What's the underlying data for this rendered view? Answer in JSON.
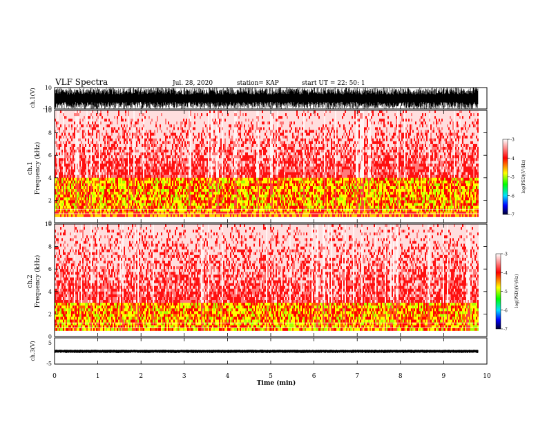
{
  "header": {
    "title": "VLF Spectra",
    "date": "Jul. 28, 2020",
    "station": "station= KAP",
    "start_ut": "start UT =  22: 50: 1"
  },
  "chart_data": [
    {
      "type": "line",
      "panel": "ch1-waveform",
      "ylabel": "ch.1(V)",
      "ylim": [
        -10,
        10
      ],
      "yticks": [
        "10",
        "-10"
      ],
      "xlim": [
        0,
        10
      ],
      "description_values": {
        "envelope_max": 10,
        "envelope_min": -10
      }
    },
    {
      "type": "heatmap",
      "panel": "ch1-spectrogram",
      "ylabel": "ch.1\nFrequency (kHz)",
      "ylabel_line1": "ch.1",
      "ylabel_line2": "Frequency (kHz)",
      "ylim": [
        0,
        10
      ],
      "yticks": [
        "0",
        "2",
        "4",
        "6",
        "8",
        "10"
      ],
      "xlim": [
        0,
        9.8
      ],
      "colorbar": {
        "label": "log(PSD)(V²/Hz)",
        "range": [
          -7,
          -3
        ],
        "ticks": [
          "-3",
          "-4",
          "-5",
          "-6",
          "-7"
        ],
        "colormap": [
          "#ffffff",
          "#ff0000",
          "#ffff00",
          "#00ff00",
          "#00ffff",
          "#0000ff",
          "#000000"
        ]
      },
      "intense_band_khz": [
        1,
        4
      ]
    },
    {
      "type": "heatmap",
      "panel": "ch2-spectrogram",
      "ylabel_line1": "ch.2",
      "ylabel_line2": "Frequency (kHz)",
      "ylim": [
        0,
        10
      ],
      "yticks": [
        "0",
        "2",
        "4",
        "6",
        "8",
        "10"
      ],
      "xlim": [
        0,
        9.8
      ],
      "colorbar": {
        "label": "log(PSD)(V²/Hz)",
        "range": [
          -7,
          -3
        ],
        "ticks": [
          "-3",
          "-4",
          "-5",
          "-6",
          "-7"
        ]
      },
      "intense_band_khz": [
        0.5,
        3
      ]
    },
    {
      "type": "line",
      "panel": "ch3-waveform",
      "ylabel": "ch.3(V)",
      "ylim": [
        -5,
        5
      ],
      "yticks": [
        "5",
        "-5"
      ],
      "xlim": [
        0,
        10
      ],
      "xlabel": "Time (min)",
      "xticks": [
        "0",
        "1",
        "2",
        "3",
        "4",
        "5",
        "6",
        "7",
        "8",
        "9",
        "10"
      ],
      "description_values": {
        "envelope_max": 0.5,
        "envelope_min": -0.8
      }
    }
  ]
}
